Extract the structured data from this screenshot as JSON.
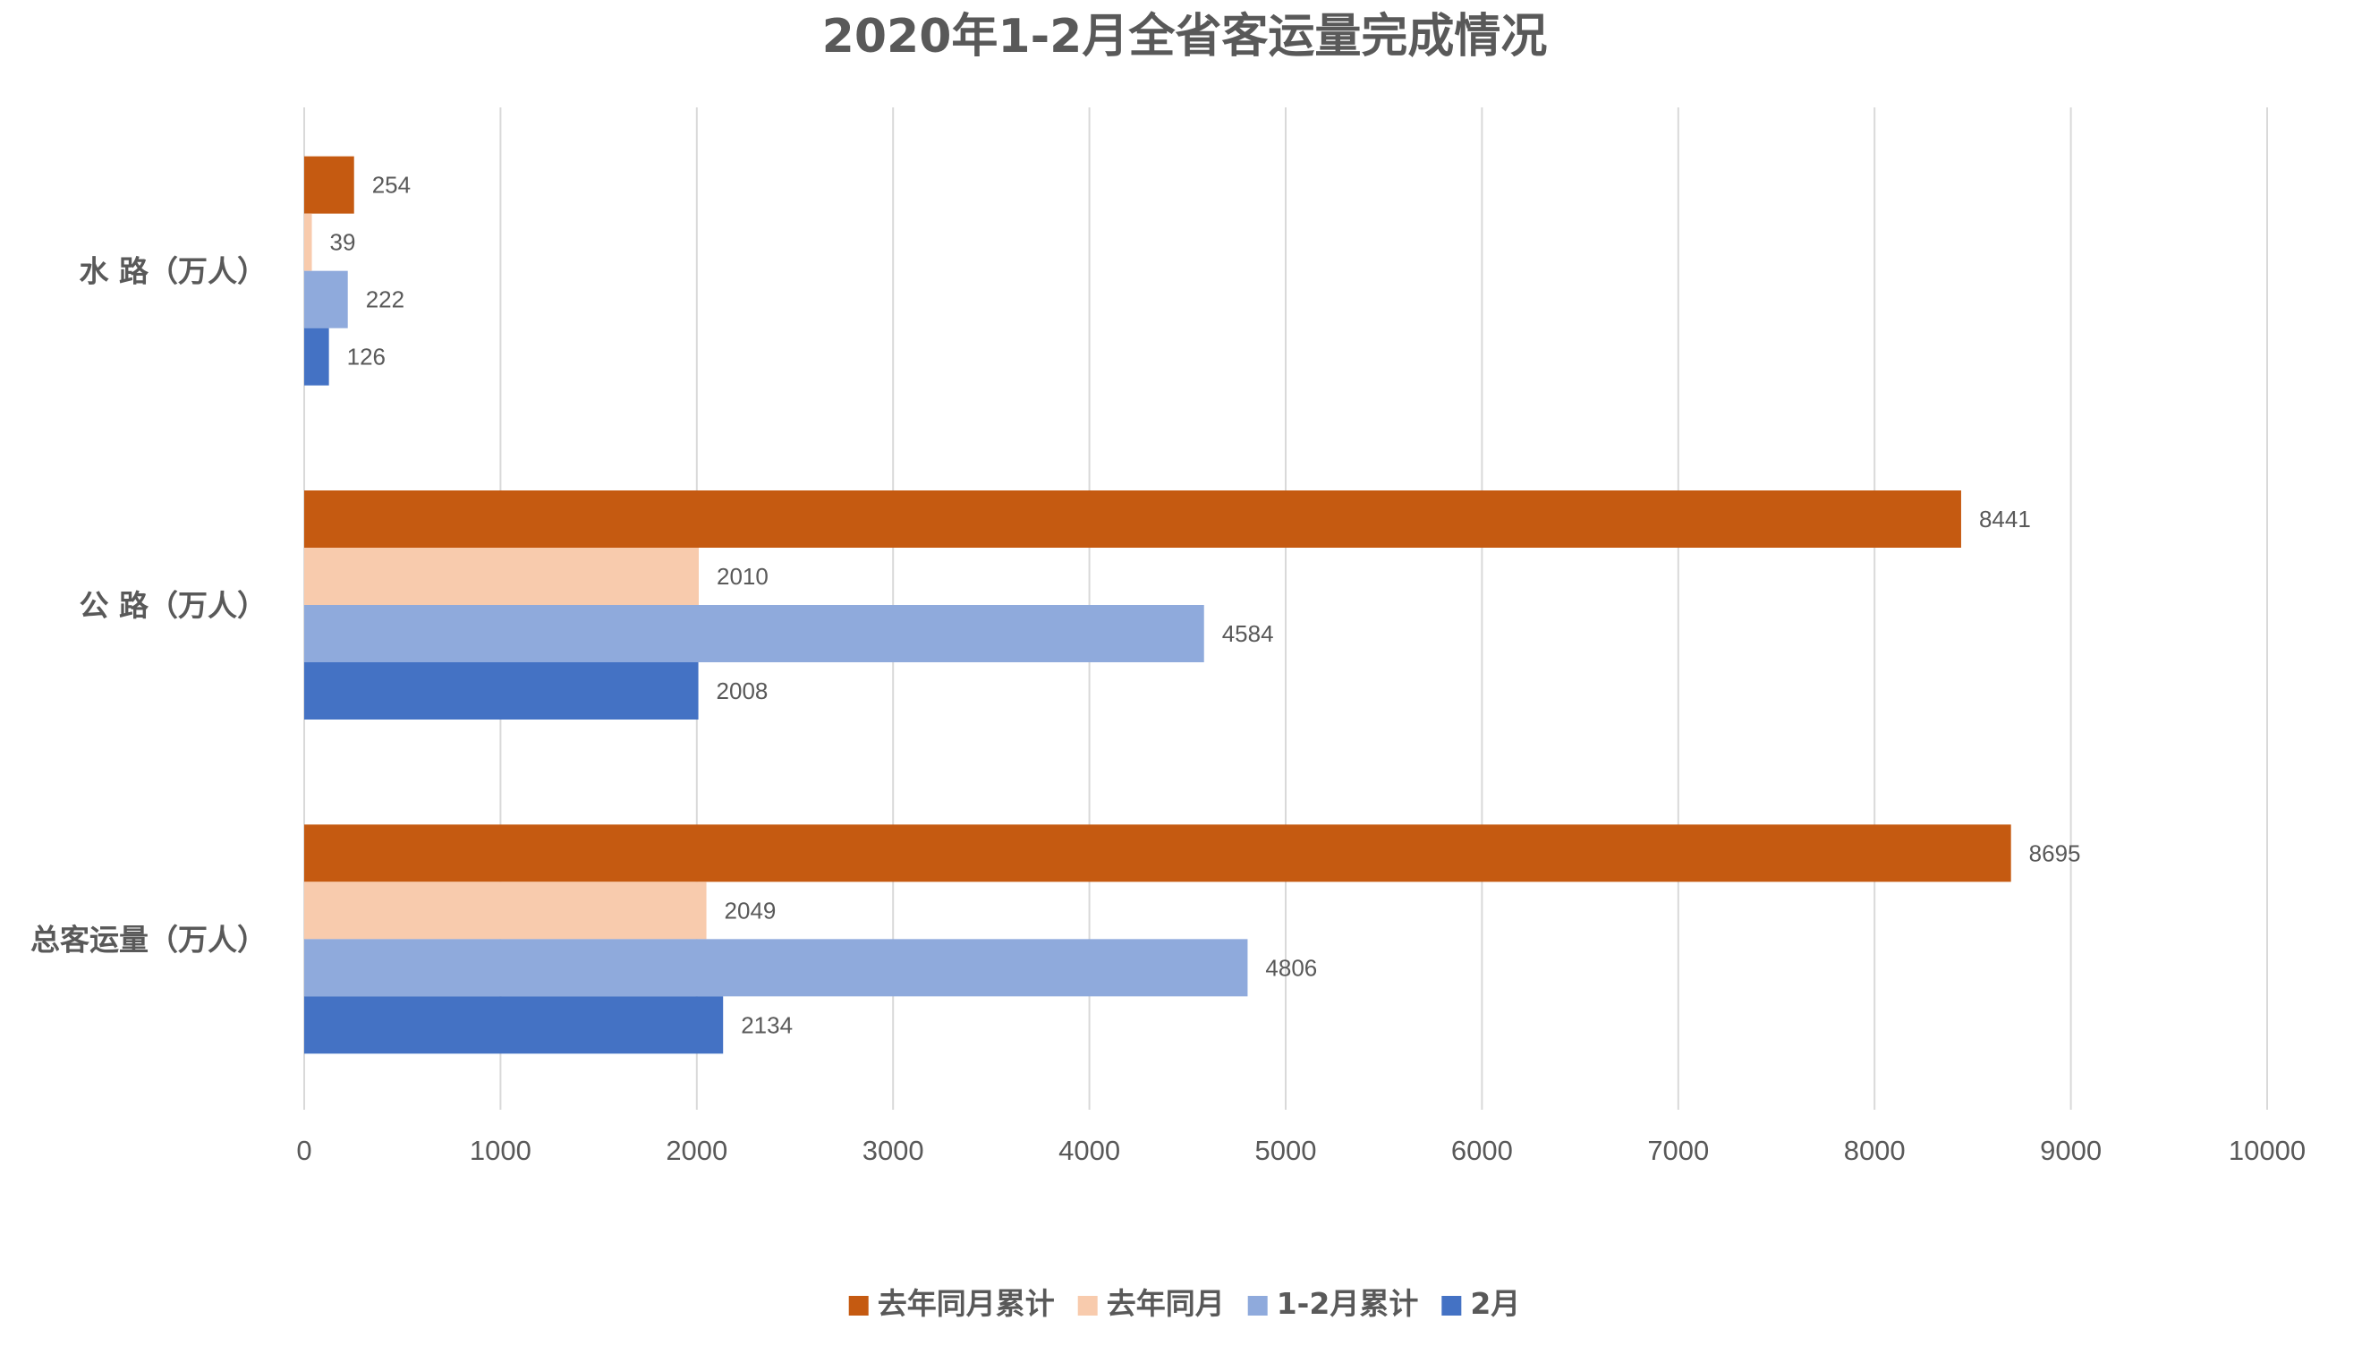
{
  "chart_data": {
    "type": "bar",
    "orientation": "horizontal",
    "title": "2020年1-2月全省客运量完成情况",
    "categories": [
      "水 路（万人）",
      "公 路（万人）",
      "总客运量（万人）"
    ],
    "series": [
      {
        "name": "去年同月累计",
        "color": "#c55a11",
        "values": [
          254,
          8441,
          8695
        ]
      },
      {
        "name": "去年同月",
        "color": "#f8cbad",
        "values": [
          39,
          2010,
          2049
        ]
      },
      {
        "name": "1-2月累计",
        "color": "#8faadc",
        "values": [
          222,
          4584,
          4806
        ]
      },
      {
        "name": "2月",
        "color": "#4472c4",
        "values": [
          126,
          2008,
          2134
        ]
      }
    ],
    "xlim": [
      0,
      10000
    ],
    "xticks": [
      "0",
      "1000",
      "2000",
      "3000",
      "4000",
      "5000",
      "6000",
      "7000",
      "8000",
      "9000",
      "10000"
    ],
    "xlabel": "",
    "ylabel": "",
    "grid": "vertical",
    "legend": "bottom"
  }
}
